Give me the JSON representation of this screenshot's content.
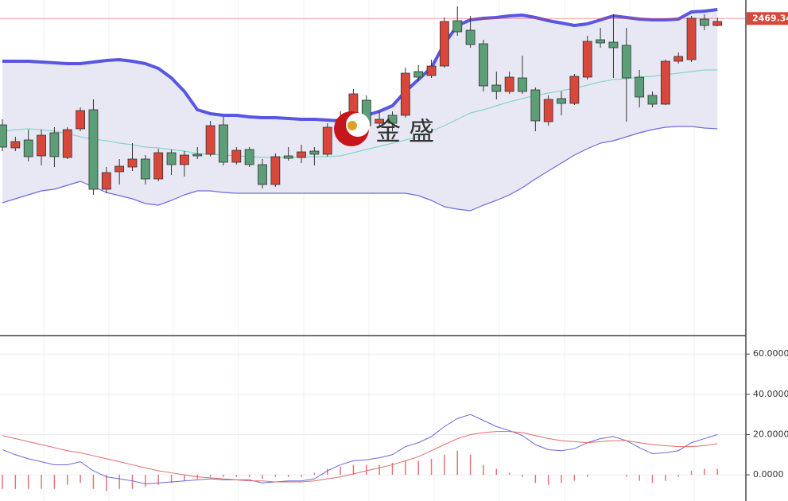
{
  "chart_data": [
    {
      "type": "candlestick",
      "ylim": [
        2390,
        2474
      ],
      "up_color": "#d9473b",
      "down_color": "#5c9e78",
      "open": [
        2442.6,
        2436.8,
        2438.8,
        2434.8,
        2440.6,
        2434.4,
        2441.6,
        2446.4,
        2426.4,
        2430.8,
        2432,
        2434,
        2429,
        2435.6,
        2432.6,
        2435.2,
        2435.2,
        2442.6,
        2433.2,
        2436.4,
        2432.6,
        2427.6,
        2434.8,
        2434.4,
        2436,
        2435.2,
        2442.4,
        2442,
        2448.8,
        2443,
        2445,
        2445,
        2456,
        2455,
        2457.4,
        2468.8,
        2466.4,
        2463,
        2452.6,
        2451,
        2454.4,
        2451.4,
        2443.4,
        2449.2,
        2448,
        2454.6,
        2464,
        2463.4,
        2462.6,
        2454.6,
        2450,
        2447.8,
        2458.6,
        2459,
        2469.2,
        2467.6
      ],
      "high": [
        2444,
        2439.6,
        2441.4,
        2441.4,
        2442,
        2442,
        2447,
        2449,
        2432,
        2434,
        2438,
        2435,
        2436.6,
        2436.4,
        2436,
        2437,
        2443.6,
        2444.6,
        2437,
        2437,
        2434,
        2435.4,
        2437,
        2437.6,
        2437,
        2443,
        2446,
        2451.6,
        2450,
        2446,
        2446,
        2457,
        2457.6,
        2459,
        2469.6,
        2472.4,
        2470,
        2464,
        2456,
        2456,
        2460,
        2452,
        2450,
        2451,
        2455.4,
        2465,
        2467,
        2470.4,
        2467,
        2456.4,
        2451,
        2459,
        2460.8,
        2470,
        2470.4,
        2469.6
      ],
      "low": [
        2436,
        2436,
        2433.4,
        2432.4,
        2432,
        2434,
        2441,
        2425,
        2425.4,
        2427.6,
        2431,
        2427.6,
        2428.4,
        2430,
        2429.6,
        2434,
        2434.6,
        2432.4,
        2432.6,
        2432,
        2426.6,
        2427,
        2433.6,
        2433,
        2432.4,
        2434.6,
        2441,
        2441,
        2441.6,
        2442,
        2441,
        2444.4,
        2453.6,
        2454.4,
        2457,
        2465,
        2462,
        2451,
        2449,
        2450.4,
        2450.4,
        2441,
        2442.4,
        2445,
        2447.6,
        2454,
        2462,
        2454.4,
        2443.4,
        2447,
        2447,
        2447.6,
        2458,
        2458.4,
        2466.4,
        2467.4
      ],
      "close": [
        2437,
        2438.4,
        2434.6,
        2440,
        2434.6,
        2441.4,
        2446.2,
        2426.4,
        2430.6,
        2432.2,
        2434,
        2429,
        2435.6,
        2432.6,
        2435,
        2434.8,
        2442.4,
        2433.2,
        2436.2,
        2432.6,
        2427.6,
        2434.6,
        2434.2,
        2435.8,
        2435.2,
        2442,
        2444,
        2450.4,
        2442.4,
        2444,
        2443,
        2455.6,
        2454.6,
        2457.4,
        2468.6,
        2466,
        2462.8,
        2452.4,
        2451,
        2454.6,
        2451,
        2443.6,
        2449,
        2448,
        2454.8,
        2463.6,
        2463.2,
        2462,
        2454.4,
        2449.6,
        2447.8,
        2458.6,
        2459.8,
        2469.4,
        2467.6,
        2468.6
      ],
      "bands": [
        {
          "color": "#5757e3",
          "values": [
            2458.6,
            2458.6,
            2458.6,
            2458.4,
            2458.2,
            2458,
            2458,
            2458.4,
            2458.8,
            2459,
            2458.6,
            2458,
            2456.8,
            2454.4,
            2451,
            2446.4,
            2445.4,
            2445,
            2445,
            2444.6,
            2444.4,
            2444.4,
            2444.2,
            2444,
            2444,
            2443.8,
            2443.6,
            2444,
            2445,
            2446,
            2447.4,
            2451,
            2454,
            2457,
            2463,
            2467.6,
            2469,
            2469.4,
            2469.6,
            2470,
            2470.2,
            2469.6,
            2468.8,
            2468.2,
            2467.6,
            2468,
            2469,
            2470,
            2469.6,
            2469.2,
            2469,
            2469,
            2469.2,
            2471,
            2471.2,
            2471.6
          ]
        },
        {
          "color": "#86d6c6",
          "values": [
            2441,
            2441.4,
            2441.6,
            2441.4,
            2441,
            2440.4,
            2439.6,
            2439,
            2438.6,
            2438,
            2437.6,
            2437,
            2436.8,
            2436.4,
            2436,
            2435.4,
            2435.2,
            2435,
            2434.8,
            2434.6,
            2434.4,
            2434.4,
            2434.4,
            2434.4,
            2434.6,
            2434.6,
            2434.8,
            2435.6,
            2436.4,
            2437.2,
            2438,
            2438.8,
            2439.6,
            2441,
            2442.4,
            2444,
            2445.6,
            2446.4,
            2447.4,
            2448.4,
            2449.2,
            2450,
            2450.6,
            2451.2,
            2451.8,
            2452.6,
            2453.4,
            2454,
            2454.2,
            2454.6,
            2454.8,
            2455.2,
            2455.6,
            2456,
            2456.4,
            2456.4
          ]
        },
        {
          "color": "#6b6be0",
          "values": [
            2423,
            2424,
            2425,
            2426,
            2426.4,
            2427.4,
            2428.4,
            2427,
            2425.6,
            2424.8,
            2424,
            2422.8,
            2422.4,
            2423.6,
            2425,
            2426,
            2426,
            2425.6,
            2425.4,
            2425.4,
            2425.4,
            2425.4,
            2425.4,
            2425.4,
            2425.4,
            2425.4,
            2425.4,
            2425.4,
            2425.4,
            2425.4,
            2425.4,
            2425.4,
            2424.8,
            2423.6,
            2422,
            2421.4,
            2421,
            2422.4,
            2423.6,
            2425,
            2426.8,
            2429,
            2431,
            2433,
            2435,
            2436.6,
            2438,
            2438.6,
            2439.6,
            2440.6,
            2441.4,
            2442,
            2442.2,
            2442.2,
            2441.8,
            2441.6
          ]
        }
      ],
      "band_fill": "#e8e8f4",
      "last_price": 2469.34,
      "watermark": "金 盛"
    },
    {
      "type": "macd",
      "ylim": [
        -13,
        68
      ],
      "yticks": [
        {
          "value": 60,
          "label": "60.0000"
        },
        {
          "value": 40,
          "label": "40.0000"
        },
        {
          "value": 20,
          "label": "20.0000"
        },
        {
          "value": 0,
          "label": "0.0000"
        }
      ],
      "grid": true,
      "series": [
        {
          "color": "#6a6ad8",
          "values": [
            12.5,
            10,
            8,
            6.5,
            5,
            5,
            6.5,
            2,
            -1,
            -2,
            -3,
            -4.5,
            -4,
            -3.5,
            -3,
            -2.5,
            -2,
            -2.5,
            -2.5,
            -2.5,
            -4,
            -3.5,
            -3,
            -3,
            -2,
            2,
            5,
            7,
            7.5,
            8.5,
            10,
            14,
            16,
            19,
            24,
            28,
            30,
            27,
            24,
            22,
            19.5,
            15,
            12.5,
            12,
            13,
            16,
            18,
            19,
            17,
            13.5,
            10.5,
            11,
            12,
            16,
            18,
            20
          ]
        },
        {
          "color": "#e46a6a",
          "values": [
            19.5,
            18,
            16.5,
            15,
            13.5,
            12,
            11,
            9.5,
            8,
            6.5,
            5,
            3.5,
            2,
            1,
            0,
            -1,
            -1.5,
            -2,
            -2.5,
            -3,
            -3,
            -3.5,
            -3.5,
            -3.5,
            -3,
            -2,
            -1,
            0.5,
            2,
            3.5,
            5,
            7,
            9,
            12,
            15,
            18,
            20,
            21,
            21.5,
            21.5,
            21,
            19.5,
            18,
            17,
            16.5,
            16,
            16.5,
            17,
            17,
            16,
            15,
            14.5,
            14,
            14,
            14.5,
            15.5
          ]
        }
      ],
      "histogram": {
        "color": "#e57373",
        "values": [
          -7,
          -7,
          -7,
          -7,
          -7,
          -5,
          -4,
          -7,
          -8,
          -7,
          -7,
          -6,
          -5,
          -4,
          -3,
          -2,
          -1,
          -1,
          -1,
          -1,
          -2,
          -1,
          -1,
          -1,
          1,
          3,
          4,
          5,
          5,
          5,
          6,
          7,
          7,
          8,
          10,
          12,
          10,
          5,
          3,
          1,
          -1,
          -4,
          -5,
          -4,
          -3,
          -1,
          0,
          0,
          -1,
          -3,
          -4,
          -3,
          -1,
          2,
          3,
          3
        ]
      }
    }
  ]
}
